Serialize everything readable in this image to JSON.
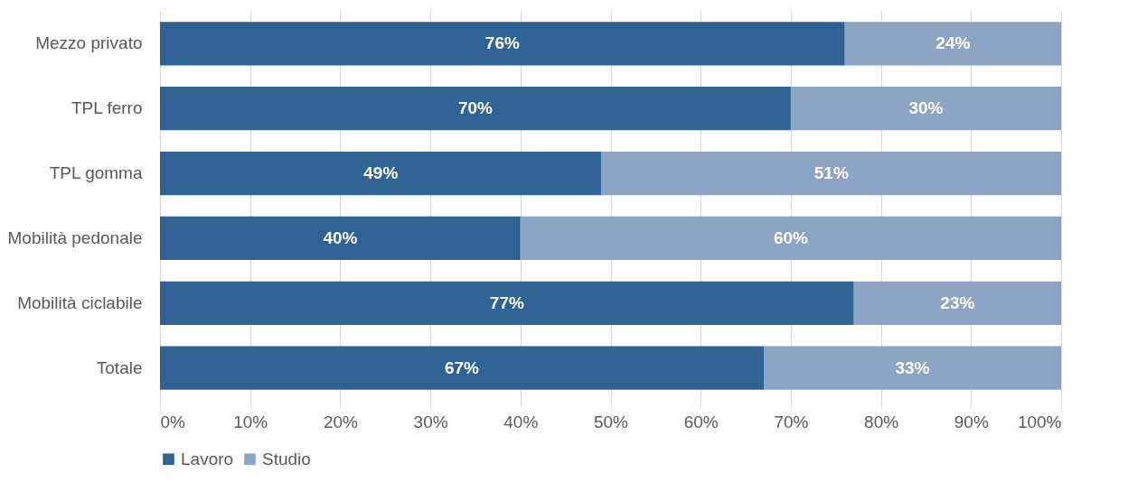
{
  "chart_data": {
    "type": "bar",
    "orientation": "horizontal",
    "stacked": true,
    "categories": [
      "Mezzo privato",
      "TPL ferro",
      "TPL gomma",
      "Mobilità pedonale",
      "Mobilità ciclabile",
      "Totale"
    ],
    "series": [
      {
        "name": "Lavoro",
        "color": "#2e6393",
        "values": [
          76,
          70,
          49,
          40,
          77,
          67
        ],
        "value_labels": [
          "76%",
          "70%",
          "49%",
          "40%",
          "77%",
          "67%"
        ]
      },
      {
        "name": "Studio",
        "color": "#8ea4c4",
        "values": [
          24,
          30,
          51,
          60,
          23,
          33
        ],
        "value_labels": [
          "24%",
          "30%",
          "51%",
          "60%",
          "23%",
          "33%"
        ]
      }
    ],
    "xlim": [
      0,
      100
    ],
    "xticks": [
      {
        "value": 0,
        "label": "0%"
      },
      {
        "value": 10,
        "label": "10%"
      },
      {
        "value": 20,
        "label": "20%"
      },
      {
        "value": 30,
        "label": "30%"
      },
      {
        "value": 40,
        "label": "40%"
      },
      {
        "value": 50,
        "label": "50%"
      },
      {
        "value": 60,
        "label": "60%"
      },
      {
        "value": 70,
        "label": "70%"
      },
      {
        "value": 80,
        "label": "80%"
      },
      {
        "value": 90,
        "label": "90%"
      },
      {
        "value": 100,
        "label": "100%"
      }
    ],
    "grid": "x",
    "legend": "bottom"
  }
}
